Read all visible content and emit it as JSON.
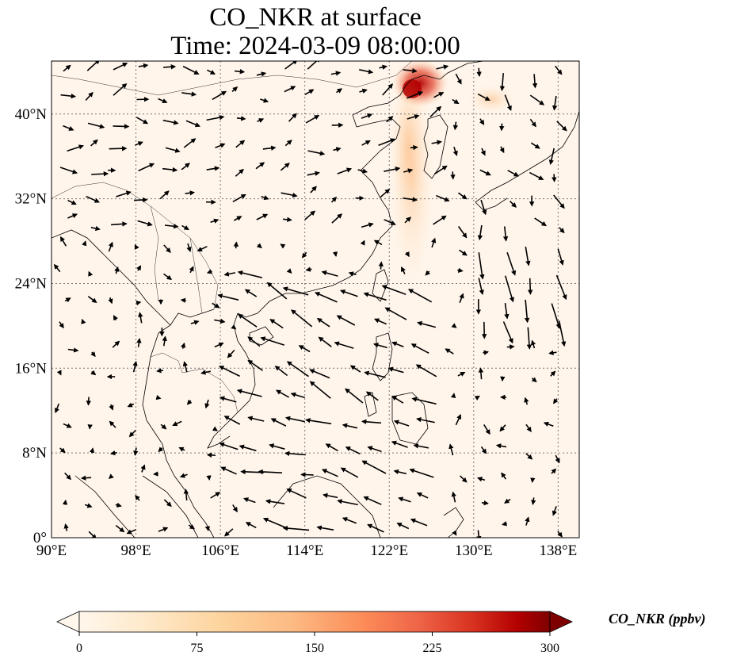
{
  "title": {
    "line1": "CO_NKR at surface",
    "line2": "Time: 2024-03-09 08:00:00"
  },
  "map": {
    "lon_range": [
      90,
      140
    ],
    "lat_range": [
      0,
      45
    ],
    "lon_ticks": [
      {
        "value": 90,
        "label": "90°E"
      },
      {
        "value": 98,
        "label": "98°E"
      },
      {
        "value": 106,
        "label": "106°E"
      },
      {
        "value": 114,
        "label": "114°E"
      },
      {
        "value": 122,
        "label": "122°E"
      },
      {
        "value": 130,
        "label": "130°E"
      },
      {
        "value": 138,
        "label": "138°E"
      }
    ],
    "lat_ticks": [
      {
        "value": 0,
        "label": "0°"
      },
      {
        "value": 8,
        "label": "8°N"
      },
      {
        "value": 16,
        "label": "16°N"
      },
      {
        "value": 24,
        "label": "24°N"
      },
      {
        "value": 32,
        "label": "32°N"
      },
      {
        "value": 40,
        "label": "40°N"
      }
    ],
    "gridlines": "dotted",
    "plume_color_high": "#b30000",
    "plume_color_mid": "#fdbb84",
    "background_color": "#fff5eb"
  },
  "colorbar": {
    "label": "CO_NKR (ppbv)",
    "range": [
      0,
      300
    ],
    "ticks": [
      "0",
      "75",
      "150",
      "225",
      "300"
    ],
    "colormap": "OrRd",
    "extend": "both"
  }
}
